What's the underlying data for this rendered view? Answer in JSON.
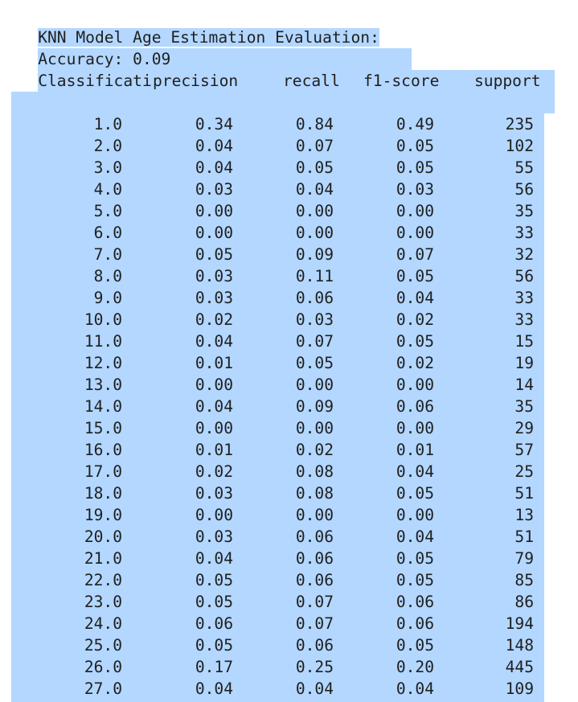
{
  "output": {
    "title": "KNN Model Age Estimation Evaluation:",
    "accuracy": "Accuracy: 0.09",
    "report_heading": "Classification Report:",
    "headers": [
      "precision",
      "recall",
      "f1-score",
      "support"
    ]
  },
  "rows": [
    {
      "label": "1.0",
      "precision": "0.34",
      "recall": "0.84",
      "f1": "0.49",
      "support": "235"
    },
    {
      "label": "2.0",
      "precision": "0.04",
      "recall": "0.07",
      "f1": "0.05",
      "support": "102"
    },
    {
      "label": "3.0",
      "precision": "0.04",
      "recall": "0.05",
      "f1": "0.05",
      "support": "55"
    },
    {
      "label": "4.0",
      "precision": "0.03",
      "recall": "0.04",
      "f1": "0.03",
      "support": "56"
    },
    {
      "label": "5.0",
      "precision": "0.00",
      "recall": "0.00",
      "f1": "0.00",
      "support": "35"
    },
    {
      "label": "6.0",
      "precision": "0.00",
      "recall": "0.00",
      "f1": "0.00",
      "support": "33"
    },
    {
      "label": "7.0",
      "precision": "0.05",
      "recall": "0.09",
      "f1": "0.07",
      "support": "32"
    },
    {
      "label": "8.0",
      "precision": "0.03",
      "recall": "0.11",
      "f1": "0.05",
      "support": "56"
    },
    {
      "label": "9.0",
      "precision": "0.03",
      "recall": "0.06",
      "f1": "0.04",
      "support": "33"
    },
    {
      "label": "10.0",
      "precision": "0.02",
      "recall": "0.03",
      "f1": "0.02",
      "support": "33"
    },
    {
      "label": "11.0",
      "precision": "0.04",
      "recall": "0.07",
      "f1": "0.05",
      "support": "15"
    },
    {
      "label": "12.0",
      "precision": "0.01",
      "recall": "0.05",
      "f1": "0.02",
      "support": "19"
    },
    {
      "label": "13.0",
      "precision": "0.00",
      "recall": "0.00",
      "f1": "0.00",
      "support": "14"
    },
    {
      "label": "14.0",
      "precision": "0.04",
      "recall": "0.09",
      "f1": "0.06",
      "support": "35"
    },
    {
      "label": "15.0",
      "precision": "0.00",
      "recall": "0.00",
      "f1": "0.00",
      "support": "29"
    },
    {
      "label": "16.0",
      "precision": "0.01",
      "recall": "0.02",
      "f1": "0.01",
      "support": "57"
    },
    {
      "label": "17.0",
      "precision": "0.02",
      "recall": "0.08",
      "f1": "0.04",
      "support": "25"
    },
    {
      "label": "18.0",
      "precision": "0.03",
      "recall": "0.08",
      "f1": "0.05",
      "support": "51"
    },
    {
      "label": "19.0",
      "precision": "0.00",
      "recall": "0.00",
      "f1": "0.00",
      "support": "13"
    },
    {
      "label": "20.0",
      "precision": "0.03",
      "recall": "0.06",
      "f1": "0.04",
      "support": "51"
    },
    {
      "label": "21.0",
      "precision": "0.04",
      "recall": "0.06",
      "f1": "0.05",
      "support": "79"
    },
    {
      "label": "22.0",
      "precision": "0.05",
      "recall": "0.06",
      "f1": "0.05",
      "support": "85"
    },
    {
      "label": "23.0",
      "precision": "0.05",
      "recall": "0.07",
      "f1": "0.06",
      "support": "86"
    },
    {
      "label": "24.0",
      "precision": "0.06",
      "recall": "0.07",
      "f1": "0.06",
      "support": "194"
    },
    {
      "label": "25.0",
      "precision": "0.05",
      "recall": "0.06",
      "f1": "0.05",
      "support": "148"
    },
    {
      "label": "26.0",
      "precision": "0.17",
      "recall": "0.25",
      "f1": "0.20",
      "support": "445"
    },
    {
      "label": "27.0",
      "precision": "0.04",
      "recall": "0.04",
      "f1": "0.04",
      "support": "109"
    }
  ],
  "colors": {
    "selection": "#b3d7ff",
    "text": "#1f1f1f",
    "background": "#ffffff"
  }
}
